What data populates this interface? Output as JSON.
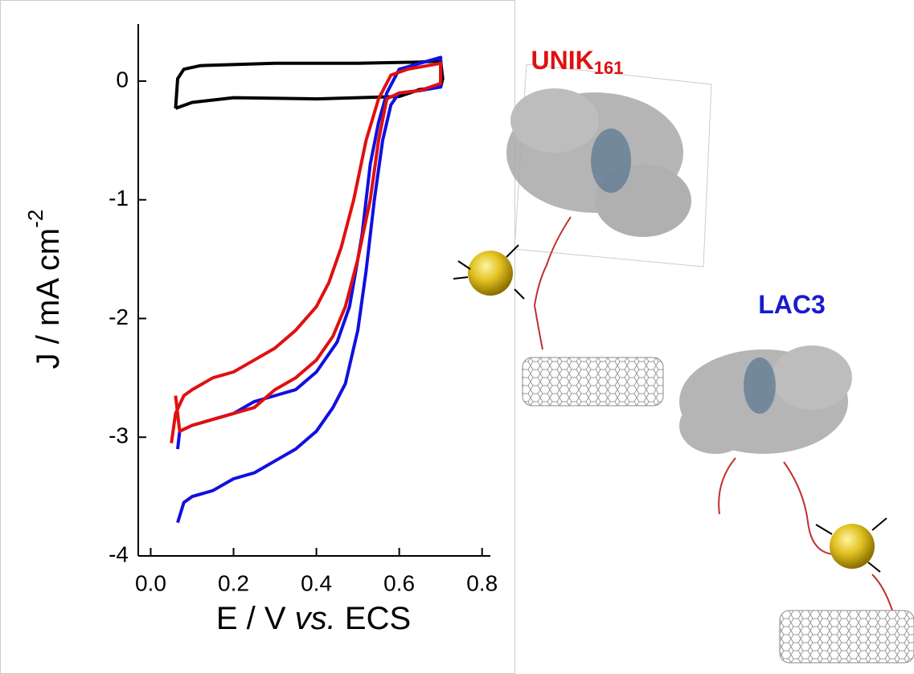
{
  "chart_data": {
    "type": "line",
    "xlabel": {
      "before": "E / V",
      "italic": "vs.",
      "after": "ECS"
    },
    "ylabel": {
      "text": "J / mA cm",
      "superscript": "-2"
    },
    "xlim": [
      -0.03,
      0.82
    ],
    "ylim": [
      -4,
      0.48
    ],
    "xticks": [
      {
        "value": 0,
        "label": "0.0"
      },
      0.2,
      0.4,
      0.6,
      0.8
    ],
    "yticks": [
      0,
      -1,
      -2,
      -3,
      -4
    ],
    "series": [
      {
        "color": "#000000",
        "x": [
          0.06,
          0.065,
          0.08,
          0.12,
          0.3,
          0.5,
          0.65,
          0.7,
          0.705,
          0.7,
          0.65,
          0.6,
          0.4,
          0.2,
          0.1,
          0.06
        ],
        "values": [
          -0.23,
          0.02,
          0.1,
          0.13,
          0.15,
          0.15,
          0.16,
          0.17,
          0.02,
          -0.05,
          -0.07,
          -0.13,
          -0.15,
          -0.14,
          -0.18,
          -0.23
        ]
      },
      {
        "color": "#1010e0",
        "x": [
          0.065,
          0.07,
          0.1,
          0.15,
          0.2,
          0.25,
          0.3,
          0.35,
          0.4,
          0.45,
          0.48,
          0.51,
          0.53,
          0.55,
          0.57,
          0.6,
          0.65,
          0.7,
          0.7,
          0.65,
          0.6,
          0.58,
          0.56,
          0.54,
          0.52,
          0.5,
          0.47,
          0.44,
          0.4,
          0.35,
          0.3,
          0.25,
          0.2,
          0.15,
          0.1,
          0.08,
          0.065
        ],
        "values": [
          -3.1,
          -2.95,
          -2.9,
          -2.85,
          -2.8,
          -2.7,
          -2.65,
          -2.6,
          -2.45,
          -2.2,
          -1.9,
          -1.3,
          -0.7,
          -0.35,
          -0.1,
          0.1,
          0.15,
          0.2,
          -0.05,
          -0.08,
          -0.1,
          -0.2,
          -0.5,
          -1.0,
          -1.6,
          -2.1,
          -2.55,
          -2.75,
          -2.95,
          -3.1,
          -3.2,
          -3.3,
          -3.35,
          -3.45,
          -3.5,
          -3.55,
          -3.72
        ]
      },
      {
        "color": "#e01010",
        "x": [
          0.05,
          0.06,
          0.08,
          0.1,
          0.15,
          0.2,
          0.25,
          0.3,
          0.35,
          0.4,
          0.43,
          0.46,
          0.49,
          0.52,
          0.55,
          0.58,
          0.62,
          0.7,
          0.7,
          0.65,
          0.6,
          0.57,
          0.55,
          0.53,
          0.5,
          0.47,
          0.44,
          0.4,
          0.35,
          0.3,
          0.25,
          0.2,
          0.15,
          0.1,
          0.07,
          0.06
        ],
        "values": [
          -3.05,
          -2.8,
          -2.65,
          -2.6,
          -2.5,
          -2.45,
          -2.35,
          -2.25,
          -2.1,
          -1.9,
          -1.7,
          -1.4,
          -1.0,
          -0.5,
          -0.15,
          0.05,
          0.1,
          0.15,
          -0.02,
          -0.08,
          -0.1,
          -0.15,
          -0.5,
          -1.0,
          -1.5,
          -1.9,
          -2.15,
          -2.35,
          -2.5,
          -2.6,
          -2.75,
          -2.8,
          -2.85,
          -2.9,
          -2.95,
          -2.65
        ]
      }
    ],
    "annotations": [
      {
        "text": "UNIK",
        "subscript": "161",
        "color": "#e01010"
      },
      {
        "text": "LAC3",
        "color": "#1a1ad0"
      }
    ]
  }
}
